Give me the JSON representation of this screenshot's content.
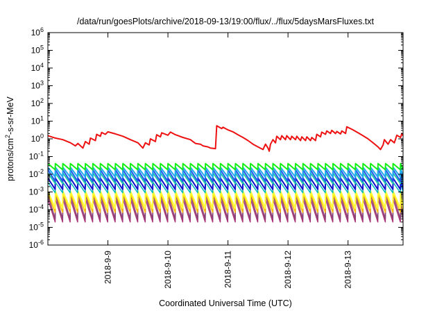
{
  "chart_data": {
    "type": "line",
    "title": "/data/run/goesPlots/archive/2018-09-13/19:00/flux/../flux/5daysMarsFluxes.txt",
    "xlabel": "Coordinated Universal Time (UTC)",
    "ylabel": {
      "pre": "protons/cm",
      "sup": "2",
      "post": "-s-sr-MeV"
    },
    "y_scale": "log",
    "ylim": [
      1e-06,
      1000000.0
    ],
    "xlim": [
      "2018-09-08 00:00",
      "2018-09-13 22:00"
    ],
    "x_ticks": [
      "2018-9-9",
      "2018-9-10",
      "2018-9-11",
      "2018-9-12",
      "2018-9-13"
    ],
    "y_ticks": [
      {
        "base": "10",
        "exp": "-6"
      },
      {
        "base": "10",
        "exp": "-5"
      },
      {
        "base": "10",
        "exp": "-4"
      },
      {
        "base": "10",
        "exp": "-3"
      },
      {
        "base": "10",
        "exp": "-2"
      },
      {
        "base": "10",
        "exp": "-1"
      },
      {
        "base": "10",
        "exp": "0"
      },
      {
        "base": "10",
        "exp": "1"
      },
      {
        "base": "10",
        "exp": "2"
      },
      {
        "base": "10",
        "exp": "3"
      },
      {
        "base": "10",
        "exp": "4"
      },
      {
        "base": "10",
        "exp": "5"
      },
      {
        "base": "10",
        "exp": "6"
      }
    ],
    "grid": false,
    "series": [
      {
        "color": "#ee1111",
        "width": 2,
        "values": [
          [
            "2018-09-08 00:00",
            1.5
          ],
          [
            "2018-09-08 03:00",
            1.1
          ],
          [
            "2018-09-08 06:00",
            0.9
          ],
          [
            "2018-09-08 09:00",
            0.6
          ],
          [
            "2018-09-08 11:00",
            0.4
          ],
          [
            "2018-09-08 12:00",
            0.55
          ],
          [
            "2018-09-08 14:00",
            0.3
          ],
          [
            "2018-09-08 15:00",
            0.7
          ],
          [
            "2018-09-08 16:30",
            0.5
          ],
          [
            "2018-09-08 17:00",
            1.1
          ],
          [
            "2018-09-08 19:00",
            0.8
          ],
          [
            "2018-09-08 19:30",
            1.8
          ],
          [
            "2018-09-08 21:00",
            1.4
          ],
          [
            "2018-09-08 21:30",
            2.3
          ],
          [
            "2018-09-08 23:00",
            1.8
          ],
          [
            "2018-09-09 00:00",
            2.5
          ],
          [
            "2018-09-09 03:00",
            1.9
          ],
          [
            "2018-09-09 06:00",
            1.4
          ],
          [
            "2018-09-09 09:00",
            0.9
          ],
          [
            "2018-09-09 12:00",
            0.6
          ],
          [
            "2018-09-09 14:00",
            0.3
          ],
          [
            "2018-09-09 15:00",
            0.6
          ],
          [
            "2018-09-09 16:30",
            0.45
          ],
          [
            "2018-09-09 17:00",
            1.0
          ],
          [
            "2018-09-09 19:00",
            0.7
          ],
          [
            "2018-09-09 19:30",
            1.7
          ],
          [
            "2018-09-09 21:00",
            1.3
          ],
          [
            "2018-09-09 21:30",
            2.2
          ],
          [
            "2018-09-10 00:00",
            1.6
          ],
          [
            "2018-09-10 01:00",
            2.4
          ],
          [
            "2018-09-10 03:00",
            1.7
          ],
          [
            "2018-09-10 06:00",
            1.2
          ],
          [
            "2018-09-10 09:00",
            0.9
          ],
          [
            "2018-09-10 11:00",
            0.55
          ],
          [
            "2018-09-10 13:00",
            0.5
          ],
          [
            "2018-09-10 14:00",
            0.4
          ],
          [
            "2018-09-10 16:00",
            0.35
          ],
          [
            "2018-09-10 17:00",
            0.3
          ],
          [
            "2018-09-10 19:00",
            0.28
          ],
          [
            "2018-09-10 19:30",
            5.5
          ],
          [
            "2018-09-10 21:30",
            3.8
          ],
          [
            "2018-09-10 22:00",
            4.5
          ],
          [
            "2018-09-11 00:00",
            3.2
          ],
          [
            "2018-09-11 02:00",
            2.5
          ],
          [
            "2018-09-11 04:00",
            1.7
          ],
          [
            "2018-09-11 06:00",
            1.2
          ],
          [
            "2018-09-11 08:00",
            0.8
          ],
          [
            "2018-09-11 10:00",
            0.5
          ],
          [
            "2018-09-11 12:00",
            0.35
          ],
          [
            "2018-09-11 14:00",
            0.25
          ],
          [
            "2018-09-11 15:00",
            0.5
          ],
          [
            "2018-09-11 16:00",
            0.3
          ],
          [
            "2018-09-11 16:30",
            0.2
          ],
          [
            "2018-09-11 17:00",
            0.5
          ],
          [
            "2018-09-11 18:00",
            0.9
          ],
          [
            "2018-09-11 19:00",
            0.6
          ],
          [
            "2018-09-11 19:30",
            1.4
          ],
          [
            "2018-09-11 21:00",
            0.9
          ],
          [
            "2018-09-11 21:30",
            1.5
          ],
          [
            "2018-09-11 23:00",
            0.9
          ],
          [
            "2018-09-11 23:30",
            1.5
          ],
          [
            "2018-09-12 01:00",
            0.9
          ],
          [
            "2018-09-12 01:30",
            1.4
          ],
          [
            "2018-09-12 03:00",
            0.9
          ],
          [
            "2018-09-12 03:30",
            1.4
          ],
          [
            "2018-09-12 05:00",
            0.8
          ],
          [
            "2018-09-12 05:30",
            1.3
          ],
          [
            "2018-09-12 07:00",
            0.8
          ],
          [
            "2018-09-12 07:30",
            1.3
          ],
          [
            "2018-09-12 09:00",
            0.8
          ],
          [
            "2018-09-12 09:30",
            1.2
          ],
          [
            "2018-09-12 11:00",
            0.8
          ],
          [
            "2018-09-12 11:30",
            1.8
          ],
          [
            "2018-09-12 13:00",
            1.3
          ],
          [
            "2018-09-12 13:30",
            2.4
          ],
          [
            "2018-09-12 15:00",
            1.8
          ],
          [
            "2018-09-12 15:30",
            2.8
          ],
          [
            "2018-09-12 17:00",
            2.0
          ],
          [
            "2018-09-12 17:30",
            3.0
          ],
          [
            "2018-09-12 19:00",
            2.0
          ],
          [
            "2018-09-12 19:30",
            2.6
          ],
          [
            "2018-09-12 21:00",
            1.9
          ],
          [
            "2018-09-12 21:30",
            2.8
          ],
          [
            "2018-09-12 23:00",
            2.0
          ],
          [
            "2018-09-12 23:30",
            4.8
          ],
          [
            "2018-09-13 02:00",
            3.2
          ],
          [
            "2018-09-13 04:00",
            2.2
          ],
          [
            "2018-09-13 06:00",
            1.5
          ],
          [
            "2018-09-13 08:00",
            1.0
          ],
          [
            "2018-09-13 10:00",
            0.6
          ],
          [
            "2018-09-13 12:00",
            0.35
          ],
          [
            "2018-09-13 13:00",
            0.25
          ],
          [
            "2018-09-13 14:00",
            0.45
          ],
          [
            "2018-09-13 14:30",
            0.9
          ],
          [
            "2018-09-13 16:00",
            0.5
          ],
          [
            "2018-09-13 17:00",
            0.9
          ],
          [
            "2018-09-13 18:30",
            0.6
          ],
          [
            "2018-09-13 19:30",
            1.6
          ],
          [
            "2018-09-13 21:00",
            1.2
          ],
          [
            "2018-09-13 21:30",
            2.0
          ],
          [
            "2018-09-13 22:00",
            1.5
          ]
        ]
      },
      {
        "color": "#11ee11",
        "width": 2,
        "sawtooth": {
          "start": "2018-09-08 00:00",
          "end": "2018-09-13 22:00",
          "period_hours": 3,
          "high": 0.04,
          "low": 0.018
        }
      },
      {
        "color": "#22aaee",
        "width": 2,
        "sawtooth": {
          "start": "2018-09-08 00:00",
          "end": "2018-09-13 22:00",
          "period_hours": 3,
          "high": 0.025,
          "low": 0.007
        }
      },
      {
        "color": "#2255ee",
        "width": 2,
        "sawtooth": {
          "start": "2018-09-08 00:00",
          "end": "2018-09-13 22:00",
          "period_hours": 3,
          "high": 0.018,
          "low": 0.004
        }
      },
      {
        "color": "#22ccaa",
        "width": 2,
        "sawtooth": {
          "start": "2018-09-08 00:00",
          "end": "2018-09-13 22:00",
          "period_hours": 3,
          "high": 0.012,
          "low": 0.003
        }
      },
      {
        "color": "#1111cc",
        "width": 2,
        "sawtooth": {
          "start": "2018-09-08 00:00",
          "end": "2018-09-13 22:00",
          "period_hours": 3,
          "high": 0.006,
          "low": 0.0014
        }
      },
      {
        "color": "#00bbbb",
        "width": 1.5,
        "sawtooth": {
          "start": "2018-09-08 00:00",
          "end": "2018-09-13 22:00",
          "period_hours": 3,
          "high": 0.0035,
          "low": 0.0009
        }
      },
      {
        "color": "#ffff33",
        "width": 2,
        "sawtooth": {
          "start": "2018-09-08 00:00",
          "end": "2018-09-13 22:00",
          "period_hours": 3,
          "high": 0.0011,
          "low": 0.00012
        }
      },
      {
        "color": "#ffbb00",
        "width": 1.5,
        "sawtooth": {
          "start": "2018-09-08 00:00",
          "end": "2018-09-13 22:00",
          "period_hours": 3,
          "high": 0.0008,
          "low": 7e-05
        }
      },
      {
        "color": "#884477",
        "width": 1.5,
        "sawtooth": {
          "start": "2018-09-08 00:00",
          "end": "2018-09-13 22:00",
          "period_hours": 3,
          "high": 0.0007,
          "low": 3e-05
        }
      },
      {
        "color": "#aa3377",
        "width": 1.5,
        "sawtooth": {
          "start": "2018-09-08 00:00",
          "end": "2018-09-13 22:00",
          "period_hours": 3,
          "high": 0.0004,
          "low": 2e-05
        }
      }
    ]
  }
}
